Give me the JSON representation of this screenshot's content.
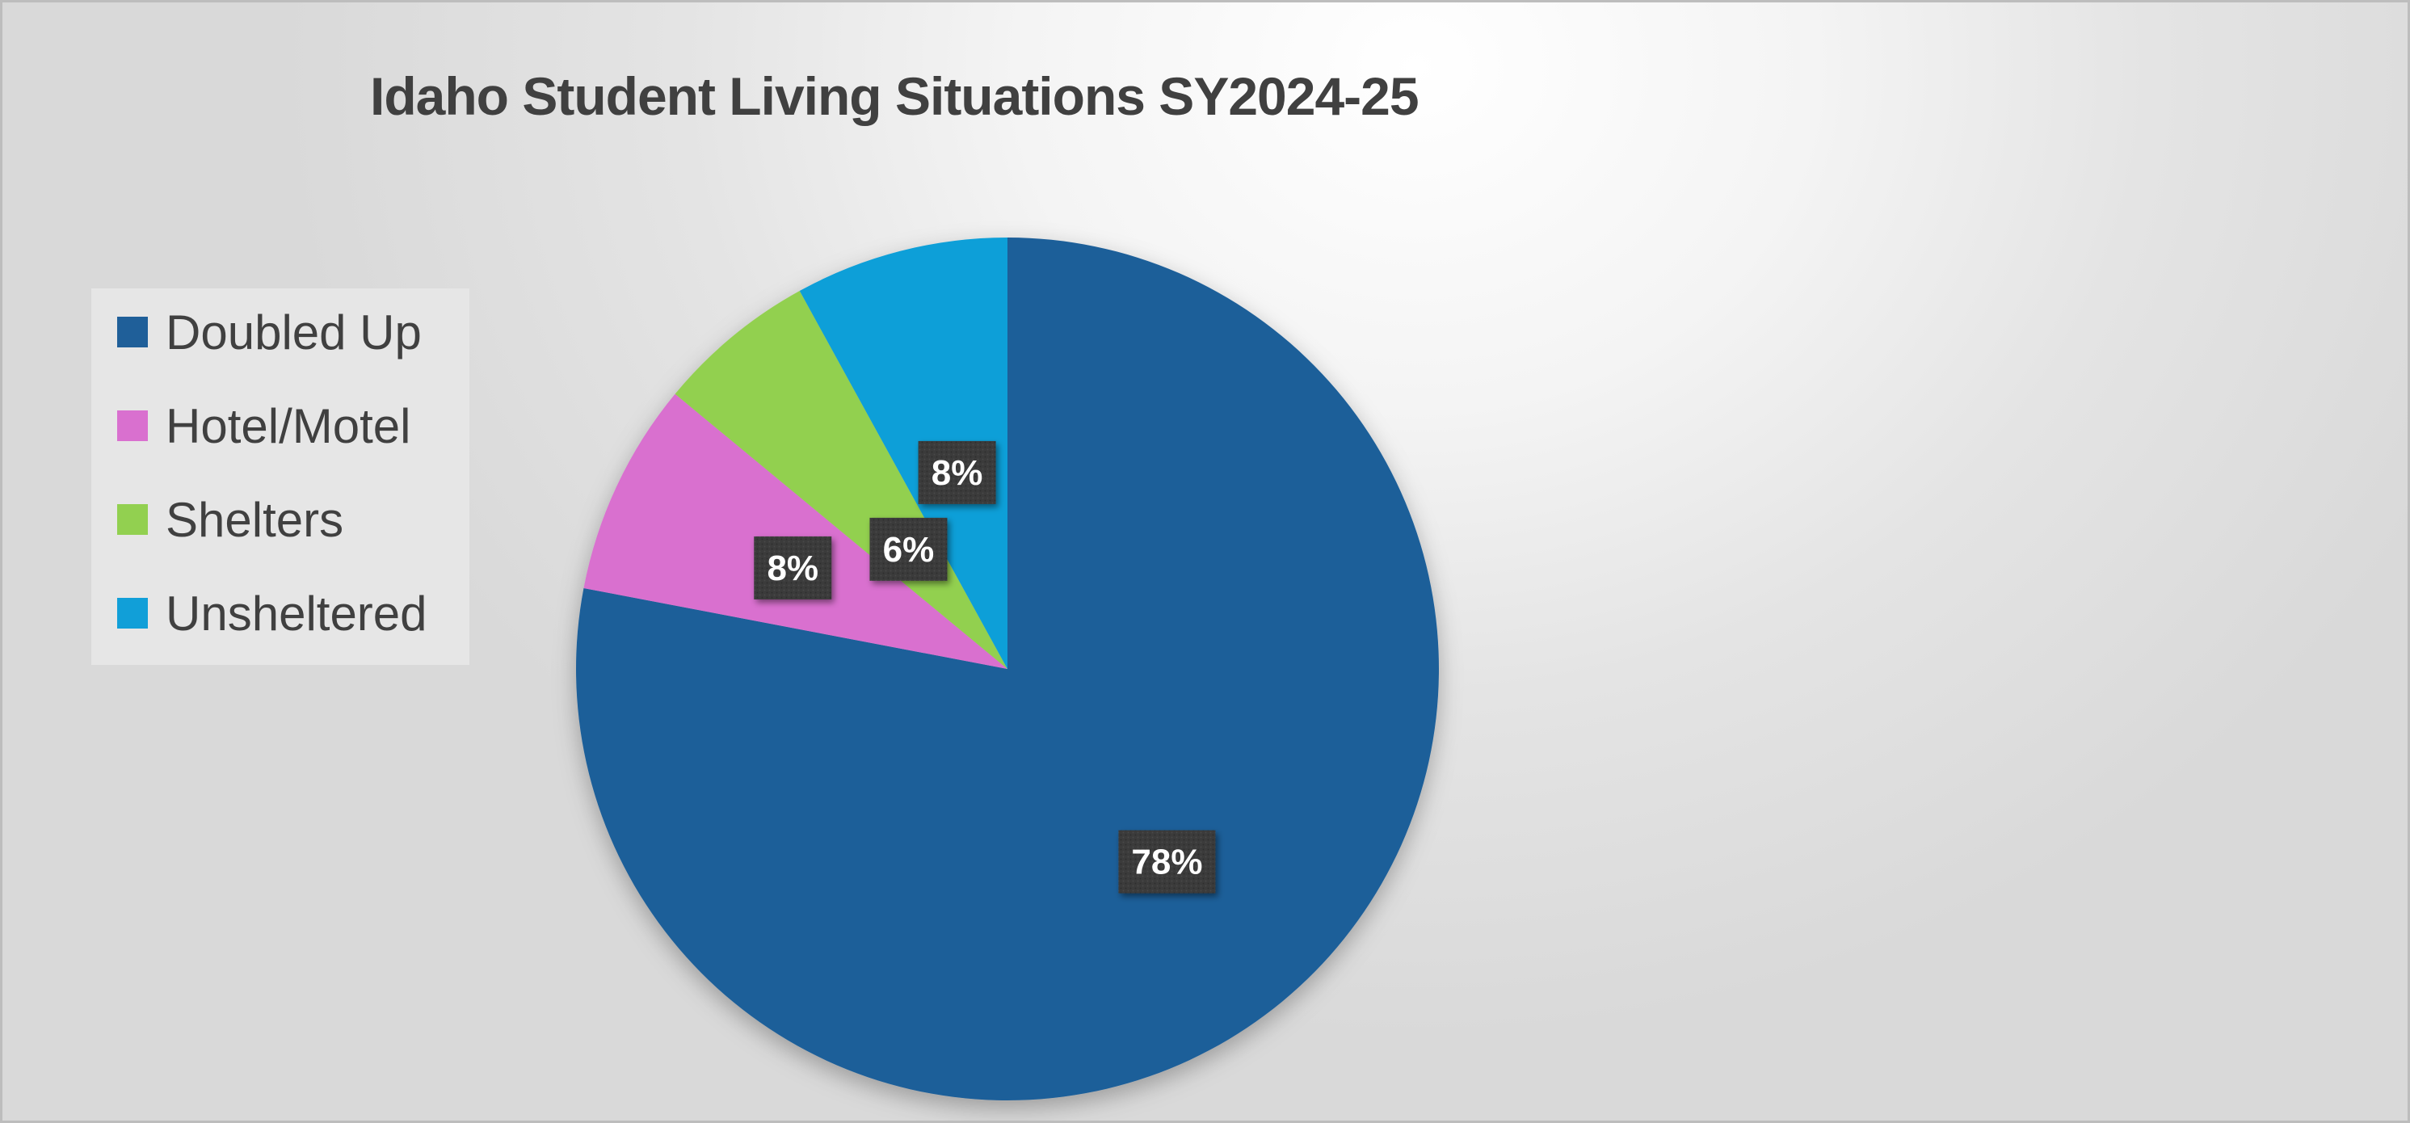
{
  "chart_data": {
    "type": "pie",
    "title": "Idaho Student Living Situations SY2024-25",
    "categories": [
      "Doubled Up",
      "Hotel/Motel",
      "Shelters",
      "Unsheltered"
    ],
    "values": [
      78,
      8,
      6,
      8
    ],
    "data_labels": [
      "78%",
      "8%",
      "6%",
      "8%"
    ],
    "colors": [
      "#1f5f99",
      "#d970cf",
      "#92d050",
      "#119fd8"
    ],
    "legend_placement": "left",
    "start_angle": "12 o'clock, clockwise"
  }
}
